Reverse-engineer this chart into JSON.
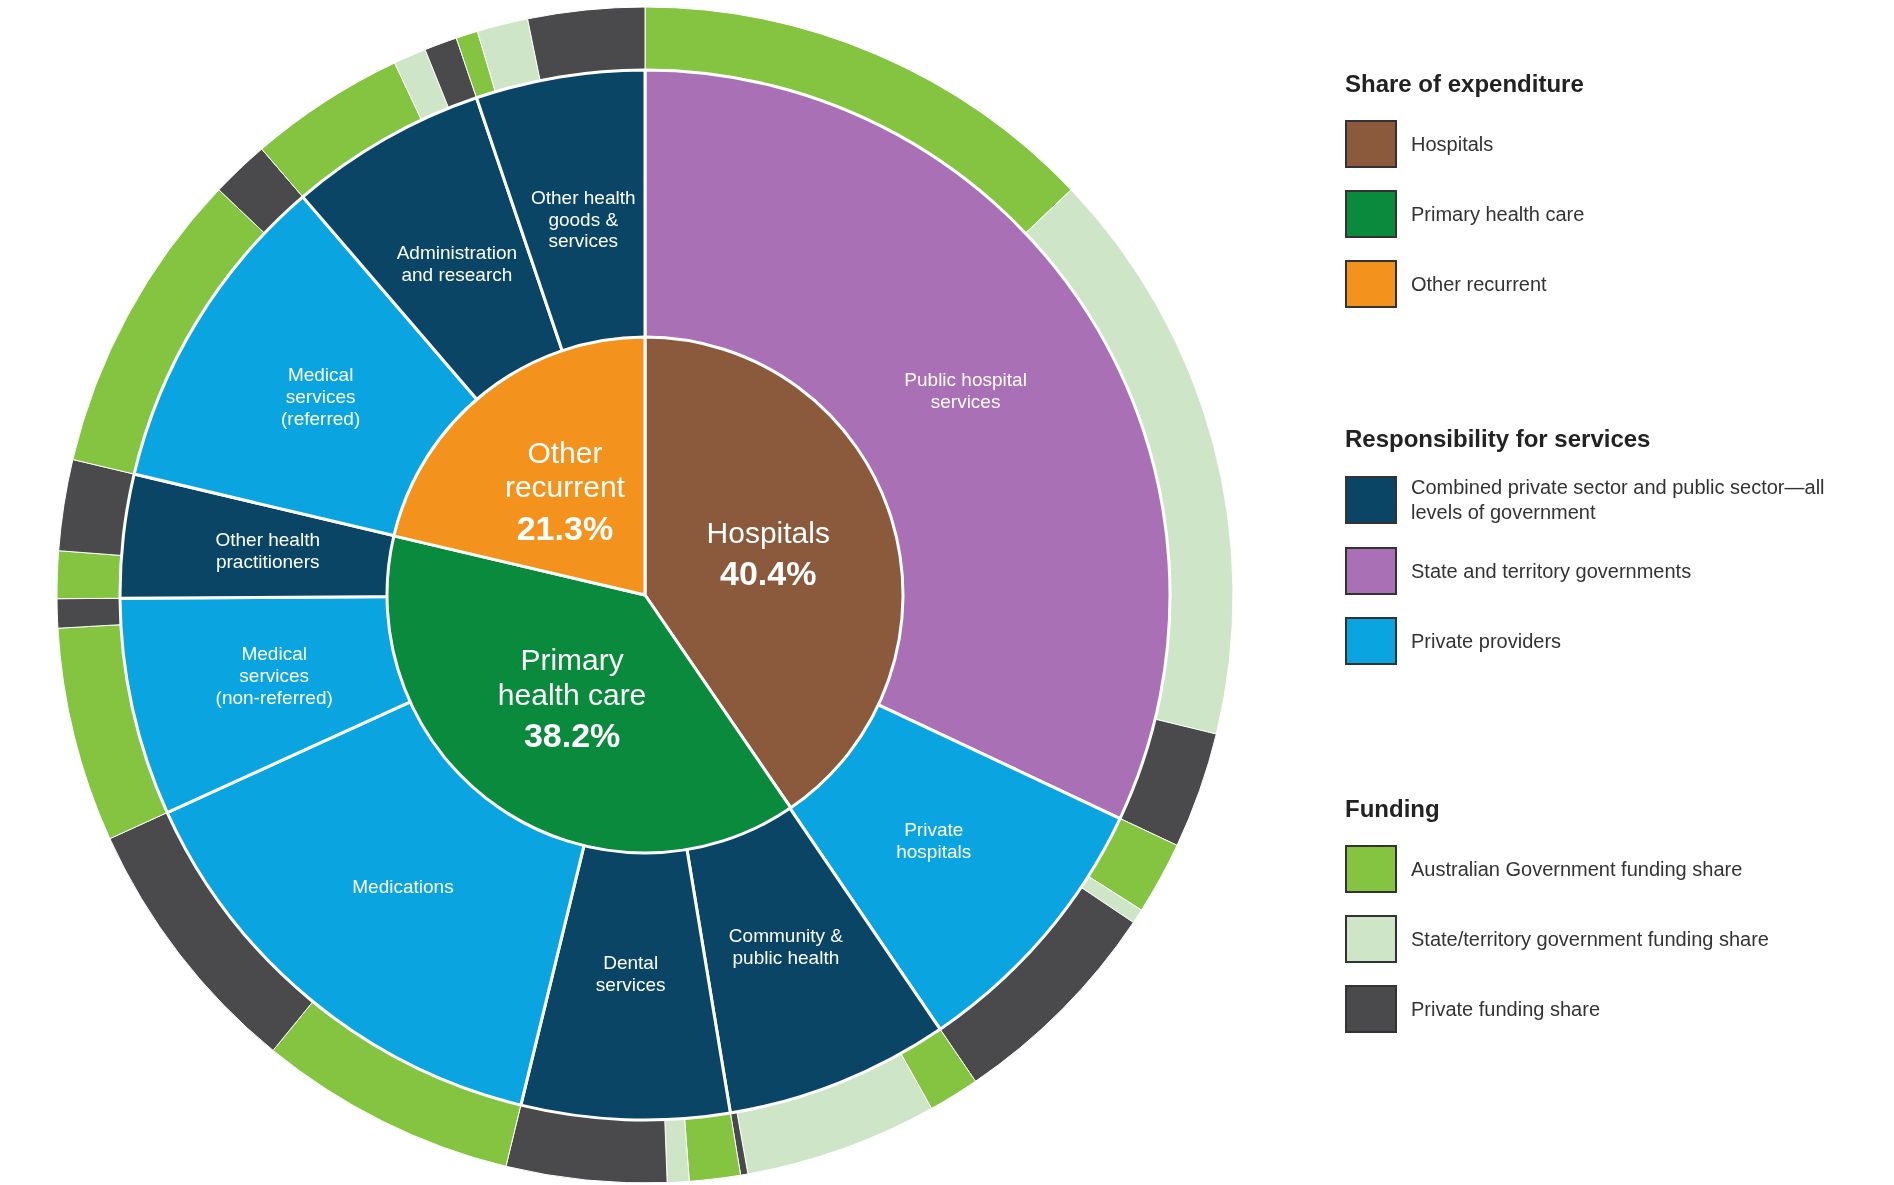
{
  "chart_data": [
    {
      "type": "pie",
      "legend_title": "Share of expenditure",
      "legend": "right",
      "categories": [
        "Hospitals",
        "Primary health care",
        "Other recurrent"
      ],
      "values": [
        40.4,
        38.2,
        21.3
      ],
      "colors": [
        "#8b5a3c",
        "#0a8a3c",
        "#f3931e"
      ],
      "value_labels": [
        "40.4%",
        "38.2%",
        "21.3%"
      ]
    },
    {
      "type": "donut",
      "categories": [
        "Public hospital services",
        "Private hospitals",
        "Community & public health",
        "Dental services",
        "Medications",
        "Medical services (non-referred)",
        "Other health practitioners",
        "Medical services (referred)",
        "Administration and research",
        "Other health goods & services"
      ],
      "values": [
        32.0,
        8.5,
        6.9,
        6.4,
        14.4,
        6.7,
        3.8,
        10.0,
        6.1,
        5.2
      ],
      "colors": [
        "#a970b5",
        "#0aa5e0",
        "#0b4566",
        "#0b4566",
        "#0aa5e0",
        "#0aa5e0",
        "#0b4566",
        "#0aa5e0",
        "#0b4566",
        "#0b4566"
      ]
    },
    {
      "type": "donut",
      "legend_title": "Funding",
      "legend": "right",
      "categories": [
        "Australian Government funding share",
        "State/territory government funding share",
        "Private funding share",
        null,
        null,
        null,
        null,
        null,
        null,
        null,
        null,
        null,
        null,
        null,
        null,
        null,
        null,
        null,
        null,
        null,
        null,
        null,
        null,
        null,
        null,
        null
      ],
      "values": [
        12.9,
        15.9,
        3.2,
        2.0,
        0.4,
        6.1,
        1.4,
        5.3,
        0.2,
        1.4,
        0.6,
        4.4,
        7.1,
        7.3,
        5.9,
        0.8,
        1.3,
        2.5,
        8.4,
        1.6,
        4.3,
        0.9,
        0.9,
        0.6,
        1.4,
        3.2
      ],
      "colors": [
        "#84c441",
        "#cfe5c8",
        "#4a4a4c",
        "#84c441",
        "#cfe5c8",
        "#4a4a4c",
        "#84c441",
        "#cfe5c8",
        "#4a4a4c",
        "#84c441",
        "#cfe5c8",
        "#4a4a4c",
        "#84c441",
        "#4a4a4c",
        "#84c441",
        "#4a4a4c",
        "#84c441",
        "#4a4a4c",
        "#84c441",
        "#4a4a4c",
        "#84c441",
        "#cfe5c8",
        "#4a4a4c",
        "#84c441",
        "#cfe5c8",
        "#4a4a4c"
      ]
    },
    {
      "type": "other",
      "title": "Responsibility for services",
      "annotations": [
        "Combined private sector and public sector—all levels of government",
        "State and territory governments",
        "Private providers"
      ],
      "colors": [
        "#0b4566",
        "#a970b5",
        "#0aa5e0"
      ]
    }
  ]
}
